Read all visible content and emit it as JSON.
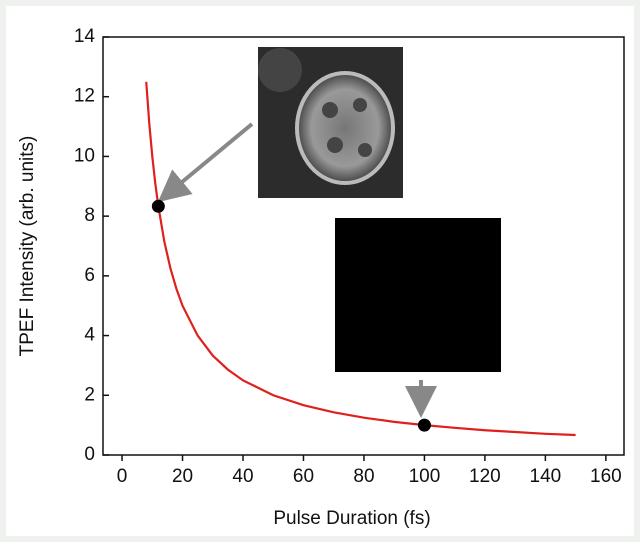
{
  "chart_data": {
    "type": "line",
    "x_label": "Pulse Duration (fs)",
    "y_label": "TPEF Intensity  (arb. units)",
    "x": [
      8,
      9,
      10,
      11,
      12,
      14,
      16,
      18,
      20,
      25,
      30,
      35,
      40,
      50,
      60,
      70,
      80,
      90,
      100,
      110,
      120,
      130,
      140,
      150
    ],
    "values": [
      12.5,
      11.11,
      10,
      9.09,
      8.33,
      7.14,
      6.25,
      5.56,
      5,
      4,
      3.33,
      2.86,
      2.5,
      2,
      1.67,
      1.43,
      1.25,
      1.11,
      1,
      0.91,
      0.83,
      0.77,
      0.71,
      0.67
    ],
    "color": "#e0201c",
    "points": {
      "x": [
        12,
        100
      ],
      "values": [
        8.33,
        1
      ],
      "color": "#000000"
    },
    "xlim": [
      -6.3,
      166
    ],
    "xticks": [
      0,
      20,
      40,
      60,
      80,
      100,
      120,
      140,
      160
    ],
    "ylim": [
      0,
      14
    ],
    "yticks": [
      0,
      2,
      4,
      6,
      8,
      10,
      12,
      14
    ]
  }
}
